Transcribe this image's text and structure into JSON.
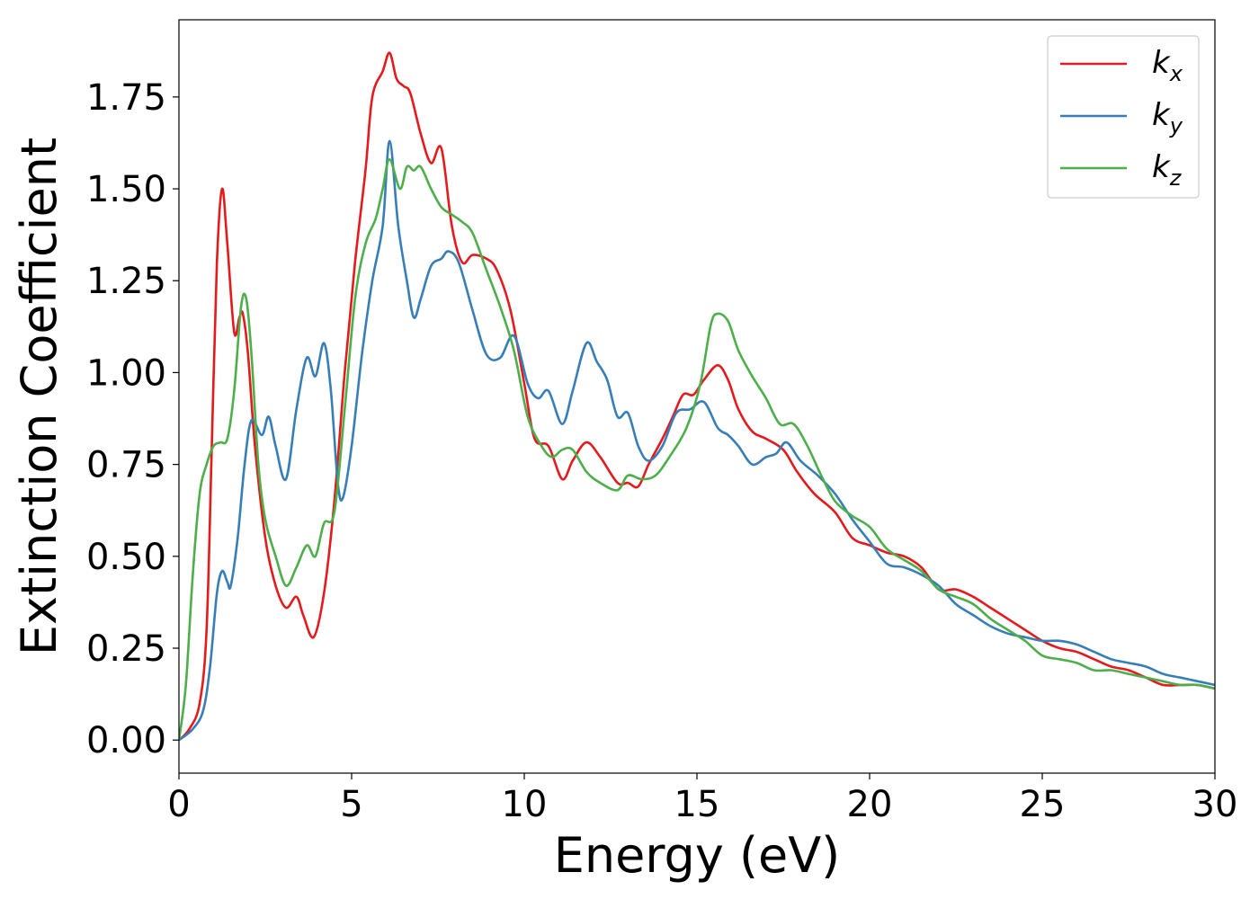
{
  "chart_data": {
    "type": "line",
    "xlabel": "Energy (eV)",
    "ylabel": "Extinction Coefficient",
    "xlim": [
      0,
      30
    ],
    "ylim": [
      -0.09,
      1.96
    ],
    "xticks": [
      0,
      5,
      10,
      15,
      20,
      25,
      30
    ],
    "xtick_labels": [
      "0",
      "5",
      "10",
      "15",
      "20",
      "25",
      "30"
    ],
    "yticks": [
      0,
      0.25,
      0.5,
      0.75,
      1.0,
      1.25,
      1.5,
      1.75
    ],
    "ytick_labels": [
      "0.00",
      "0.25",
      "0.50",
      "0.75",
      "1.00",
      "1.25",
      "1.50",
      "1.75"
    ],
    "grid": false,
    "legend_position": "top-right",
    "series": [
      {
        "name": "k_x",
        "legend_main": "k",
        "legend_sub": "x",
        "color": "#e41a1c",
        "points": [
          [
            0,
            0
          ],
          [
            0.3,
            0.03
          ],
          [
            0.6,
            0.1
          ],
          [
            0.8,
            0.3
          ],
          [
            0.95,
            0.8
          ],
          [
            1.1,
            1.3
          ],
          [
            1.25,
            1.5
          ],
          [
            1.4,
            1.35
          ],
          [
            1.6,
            1.11
          ],
          [
            1.75,
            1.15
          ],
          [
            1.85,
            1.16
          ],
          [
            2.0,
            1.05
          ],
          [
            2.2,
            0.8
          ],
          [
            2.5,
            0.55
          ],
          [
            2.8,
            0.42
          ],
          [
            3.1,
            0.36
          ],
          [
            3.4,
            0.39
          ],
          [
            3.6,
            0.34
          ],
          [
            3.9,
            0.28
          ],
          [
            4.2,
            0.4
          ],
          [
            4.5,
            0.65
          ],
          [
            4.8,
            1.0
          ],
          [
            5.1,
            1.3
          ],
          [
            5.4,
            1.55
          ],
          [
            5.6,
            1.75
          ],
          [
            5.9,
            1.82
          ],
          [
            6.1,
            1.87
          ],
          [
            6.3,
            1.8
          ],
          [
            6.5,
            1.78
          ],
          [
            6.7,
            1.76
          ],
          [
            7.0,
            1.65
          ],
          [
            7.3,
            1.57
          ],
          [
            7.6,
            1.61
          ],
          [
            7.9,
            1.4
          ],
          [
            8.2,
            1.3
          ],
          [
            8.5,
            1.32
          ],
          [
            8.9,
            1.31
          ],
          [
            9.2,
            1.28
          ],
          [
            9.6,
            1.17
          ],
          [
            10.0,
            0.97
          ],
          [
            10.3,
            0.82
          ],
          [
            10.7,
            0.8
          ],
          [
            11.1,
            0.71
          ],
          [
            11.4,
            0.76
          ],
          [
            11.8,
            0.81
          ],
          [
            12.2,
            0.77
          ],
          [
            12.7,
            0.7
          ],
          [
            13.0,
            0.7
          ],
          [
            13.3,
            0.69
          ],
          [
            13.6,
            0.75
          ],
          [
            14.0,
            0.82
          ],
          [
            14.3,
            0.88
          ],
          [
            14.6,
            0.94
          ],
          [
            14.9,
            0.94
          ],
          [
            15.2,
            0.98
          ],
          [
            15.6,
            1.02
          ],
          [
            15.9,
            0.98
          ],
          [
            16.2,
            0.9
          ],
          [
            16.6,
            0.84
          ],
          [
            17.0,
            0.82
          ],
          [
            17.5,
            0.79
          ],
          [
            17.9,
            0.73
          ],
          [
            18.4,
            0.67
          ],
          [
            19.0,
            0.62
          ],
          [
            19.5,
            0.55
          ],
          [
            20.0,
            0.53
          ],
          [
            20.5,
            0.51
          ],
          [
            21.0,
            0.5
          ],
          [
            21.5,
            0.47
          ],
          [
            22.0,
            0.41
          ],
          [
            22.5,
            0.41
          ],
          [
            23.0,
            0.39
          ],
          [
            23.5,
            0.36
          ],
          [
            24.0,
            0.33
          ],
          [
            24.5,
            0.3
          ],
          [
            25.0,
            0.27
          ],
          [
            25.5,
            0.25
          ],
          [
            26.0,
            0.24
          ],
          [
            26.5,
            0.22
          ],
          [
            27.0,
            0.2
          ],
          [
            27.5,
            0.19
          ],
          [
            28.0,
            0.17
          ],
          [
            28.5,
            0.15
          ],
          [
            29.0,
            0.15
          ],
          [
            29.5,
            0.15
          ],
          [
            30,
            0.14
          ]
        ]
      },
      {
        "name": "k_y",
        "legend_main": "k",
        "legend_sub": "y",
        "color": "#377eb8",
        "points": [
          [
            0,
            0
          ],
          [
            0.4,
            0.03
          ],
          [
            0.7,
            0.08
          ],
          [
            0.9,
            0.2
          ],
          [
            1.1,
            0.4
          ],
          [
            1.25,
            0.46
          ],
          [
            1.4,
            0.43
          ],
          [
            1.5,
            0.42
          ],
          [
            1.7,
            0.55
          ],
          [
            1.9,
            0.75
          ],
          [
            2.1,
            0.87
          ],
          [
            2.4,
            0.83
          ],
          [
            2.6,
            0.88
          ],
          [
            2.8,
            0.8
          ],
          [
            3.1,
            0.71
          ],
          [
            3.4,
            0.9
          ],
          [
            3.7,
            1.04
          ],
          [
            3.95,
            0.99
          ],
          [
            4.2,
            1.08
          ],
          [
            4.4,
            0.95
          ],
          [
            4.6,
            0.7
          ],
          [
            4.75,
            0.66
          ],
          [
            5.0,
            0.8
          ],
          [
            5.3,
            1.05
          ],
          [
            5.6,
            1.25
          ],
          [
            5.9,
            1.4
          ],
          [
            6.1,
            1.63
          ],
          [
            6.35,
            1.4
          ],
          [
            6.6,
            1.25
          ],
          [
            6.8,
            1.15
          ],
          [
            7.0,
            1.2
          ],
          [
            7.3,
            1.29
          ],
          [
            7.6,
            1.31
          ],
          [
            7.8,
            1.33
          ],
          [
            8.1,
            1.3
          ],
          [
            8.5,
            1.17
          ],
          [
            8.9,
            1.05
          ],
          [
            9.3,
            1.04
          ],
          [
            9.7,
            1.1
          ],
          [
            10.1,
            0.97
          ],
          [
            10.4,
            0.93
          ],
          [
            10.7,
            0.95
          ],
          [
            11.1,
            0.86
          ],
          [
            11.4,
            0.95
          ],
          [
            11.8,
            1.08
          ],
          [
            12.1,
            1.03
          ],
          [
            12.4,
            0.98
          ],
          [
            12.7,
            0.88
          ],
          [
            13.0,
            0.89
          ],
          [
            13.3,
            0.8
          ],
          [
            13.6,
            0.76
          ],
          [
            14.0,
            0.8
          ],
          [
            14.4,
            0.89
          ],
          [
            14.8,
            0.9
          ],
          [
            15.2,
            0.92
          ],
          [
            15.6,
            0.85
          ],
          [
            15.9,
            0.83
          ],
          [
            16.2,
            0.8
          ],
          [
            16.6,
            0.75
          ],
          [
            17.0,
            0.77
          ],
          [
            17.3,
            0.78
          ],
          [
            17.6,
            0.81
          ],
          [
            18.0,
            0.76
          ],
          [
            18.5,
            0.72
          ],
          [
            19.0,
            0.67
          ],
          [
            19.5,
            0.6
          ],
          [
            20.0,
            0.54
          ],
          [
            20.5,
            0.48
          ],
          [
            21.0,
            0.47
          ],
          [
            21.5,
            0.45
          ],
          [
            22.0,
            0.42
          ],
          [
            22.5,
            0.37
          ],
          [
            23.0,
            0.34
          ],
          [
            23.5,
            0.31
          ],
          [
            24.0,
            0.29
          ],
          [
            24.5,
            0.28
          ],
          [
            25.0,
            0.27
          ],
          [
            25.5,
            0.27
          ],
          [
            26.0,
            0.26
          ],
          [
            26.5,
            0.24
          ],
          [
            27.0,
            0.22
          ],
          [
            27.5,
            0.21
          ],
          [
            28.0,
            0.2
          ],
          [
            28.5,
            0.18
          ],
          [
            29.0,
            0.17
          ],
          [
            29.5,
            0.16
          ],
          [
            30,
            0.15
          ]
        ]
      },
      {
        "name": "k_z",
        "legend_main": "k",
        "legend_sub": "z",
        "color": "#4daf4a",
        "points": [
          [
            0,
            0
          ],
          [
            0.2,
            0.15
          ],
          [
            0.4,
            0.45
          ],
          [
            0.6,
            0.67
          ],
          [
            0.8,
            0.75
          ],
          [
            1.0,
            0.8
          ],
          [
            1.2,
            0.81
          ],
          [
            1.4,
            0.82
          ],
          [
            1.6,
            0.95
          ],
          [
            1.8,
            1.18
          ],
          [
            1.95,
            1.2
          ],
          [
            2.1,
            1.05
          ],
          [
            2.3,
            0.75
          ],
          [
            2.5,
            0.6
          ],
          [
            2.8,
            0.5
          ],
          [
            3.1,
            0.42
          ],
          [
            3.4,
            0.47
          ],
          [
            3.7,
            0.53
          ],
          [
            3.95,
            0.5
          ],
          [
            4.2,
            0.59
          ],
          [
            4.5,
            0.62
          ],
          [
            4.8,
            0.9
          ],
          [
            5.1,
            1.2
          ],
          [
            5.4,
            1.35
          ],
          [
            5.7,
            1.42
          ],
          [
            5.9,
            1.5
          ],
          [
            6.1,
            1.58
          ],
          [
            6.4,
            1.5
          ],
          [
            6.6,
            1.56
          ],
          [
            6.8,
            1.55
          ],
          [
            7.0,
            1.56
          ],
          [
            7.3,
            1.5
          ],
          [
            7.6,
            1.45
          ],
          [
            7.9,
            1.43
          ],
          [
            8.2,
            1.41
          ],
          [
            8.5,
            1.38
          ],
          [
            8.9,
            1.28
          ],
          [
            9.3,
            1.18
          ],
          [
            9.7,
            1.06
          ],
          [
            10.1,
            0.88
          ],
          [
            10.5,
            0.8
          ],
          [
            10.8,
            0.77
          ],
          [
            11.1,
            0.79
          ],
          [
            11.4,
            0.79
          ],
          [
            11.8,
            0.73
          ],
          [
            12.2,
            0.7
          ],
          [
            12.7,
            0.68
          ],
          [
            13.0,
            0.72
          ],
          [
            13.4,
            0.71
          ],
          [
            13.8,
            0.72
          ],
          [
            14.2,
            0.77
          ],
          [
            14.7,
            0.85
          ],
          [
            15.1,
            0.97
          ],
          [
            15.4,
            1.13
          ],
          [
            15.6,
            1.16
          ],
          [
            15.9,
            1.14
          ],
          [
            16.2,
            1.06
          ],
          [
            16.6,
            0.99
          ],
          [
            17.0,
            0.93
          ],
          [
            17.4,
            0.86
          ],
          [
            17.8,
            0.86
          ],
          [
            18.2,
            0.8
          ],
          [
            18.6,
            0.72
          ],
          [
            19.0,
            0.65
          ],
          [
            19.5,
            0.61
          ],
          [
            20.0,
            0.58
          ],
          [
            20.5,
            0.52
          ],
          [
            21.0,
            0.49
          ],
          [
            21.5,
            0.46
          ],
          [
            22.0,
            0.41
          ],
          [
            22.5,
            0.39
          ],
          [
            23.0,
            0.37
          ],
          [
            23.5,
            0.33
          ],
          [
            24.0,
            0.3
          ],
          [
            24.5,
            0.27
          ],
          [
            25.0,
            0.23
          ],
          [
            25.5,
            0.22
          ],
          [
            26.0,
            0.21
          ],
          [
            26.5,
            0.19
          ],
          [
            27.0,
            0.19
          ],
          [
            27.5,
            0.18
          ],
          [
            28.0,
            0.17
          ],
          [
            28.5,
            0.16
          ],
          [
            29.0,
            0.15
          ],
          [
            29.5,
            0.15
          ],
          [
            30,
            0.14
          ]
        ]
      }
    ]
  }
}
